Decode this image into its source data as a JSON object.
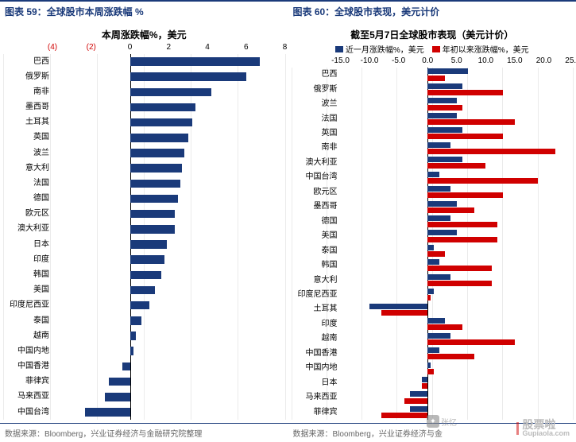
{
  "header": {
    "left": "图表 59：全球股市本周涨跌幅  %",
    "right": "图表 60：全球股市表现，美元计价"
  },
  "footer": {
    "left": "数据来源：Bloomberg，兴业证券经济与金融研究院整理",
    "right": "数据来源：Bloomberg，兴业证券经济与金"
  },
  "watermark": {
    "brand": "股票啦",
    "url": "Gupiaola.com"
  },
  "wx": {
    "text": "张忆"
  },
  "chart_left": {
    "title": "本周涨跌幅%，美元",
    "title_fontsize": 12,
    "background_color": "#ffffff",
    "bar_color": "#1a3a7a",
    "tick_color": "#000000",
    "neg_tick_color": "#d00000",
    "xlim": [
      -4,
      8
    ],
    "ticks": [
      -4,
      -2,
      0,
      2,
      4,
      6,
      8
    ],
    "neg_ticks": [
      -4,
      -2
    ],
    "categories": [
      "巴西",
      "俄罗斯",
      "南非",
      "墨西哥",
      "土耳其",
      "英国",
      "波兰",
      "意大利",
      "法国",
      "德国",
      "欧元区",
      "澳大利亚",
      "日本",
      "印度",
      "韩国",
      "美国",
      "印度尼西亚",
      "泰国",
      "越南",
      "中国内地",
      "中国香港",
      "菲律宾",
      "马来西亚",
      "中国台湾"
    ],
    "values": [
      6.7,
      6.0,
      4.2,
      3.4,
      3.2,
      3.0,
      2.8,
      2.7,
      2.6,
      2.5,
      2.3,
      2.3,
      1.9,
      1.8,
      1.6,
      1.3,
      1.0,
      0.6,
      0.3,
      0.2,
      -0.4,
      -1.1,
      -1.3,
      -2.3
    ]
  },
  "chart_right": {
    "title": "截至5月7日全球股市表现（美元计价）",
    "title_fontsize": 12,
    "background_color": "#ffffff",
    "series": [
      {
        "label": "近一月涨跌幅%，美元",
        "color": "#1a3a7a"
      },
      {
        "label": "年初以来涨跌幅%，美元",
        "color": "#d00000"
      }
    ],
    "xlim": [
      -15,
      25
    ],
    "ticks": [
      -15,
      -10,
      -5,
      0,
      5,
      10,
      15,
      20,
      25
    ],
    "tick_color": "#000000",
    "categories": [
      "巴西",
      "俄罗斯",
      "波兰",
      "法国",
      "英国",
      "南非",
      "澳大利亚",
      "中国台湾",
      "欧元区",
      "墨西哥",
      "德国",
      "美国",
      "泰国",
      "韩国",
      "意大利",
      "印度尼西亚",
      "土耳其",
      "印度",
      "越南",
      "中国香港",
      "中国内地",
      "日本",
      "马来西亚",
      "菲律宾"
    ],
    "values_a": [
      7,
      6,
      5,
      5,
      6,
      4,
      6,
      2,
      4,
      5,
      4,
      5,
      1,
      2,
      4,
      1,
      -10,
      3,
      4,
      2,
      0.5,
      -1,
      -3,
      -3
    ],
    "values_b": [
      3,
      13,
      6,
      15,
      13,
      22,
      10,
      19,
      13,
      8,
      12,
      12,
      3,
      11,
      11,
      0.5,
      -8,
      6,
      15,
      8,
      1,
      -1,
      -4,
      -8
    ]
  }
}
